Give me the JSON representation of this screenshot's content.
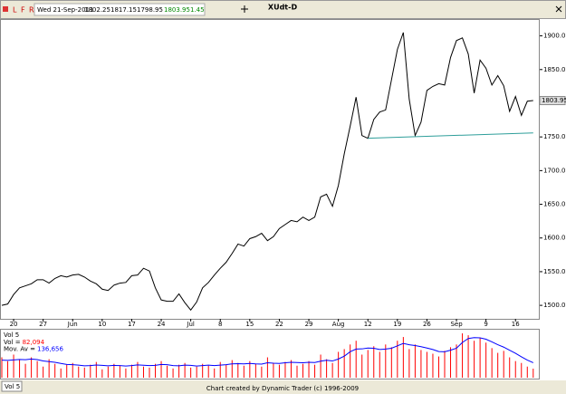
{
  "toolbar": {
    "buttons": [
      "L",
      "F",
      "R"
    ]
  },
  "chart_data": [
    {
      "type": "line",
      "title": "XUdt-D",
      "header": {
        "date": "Wed 21-Sep-2011",
        "open": 1802.25,
        "high": 1817.15,
        "low": 1798.95,
        "close": 1803.95,
        "change": 1.45
      },
      "categories": [
        null,
        null,
        "20",
        null,
        null,
        null,
        null,
        "27",
        null,
        null,
        null,
        null,
        "Jun",
        null,
        null,
        null,
        null,
        "10",
        null,
        null,
        null,
        null,
        "17",
        null,
        null,
        null,
        null,
        "24",
        null,
        null,
        null,
        null,
        "Jul",
        null,
        null,
        null,
        null,
        "8",
        null,
        null,
        null,
        null,
        "15",
        null,
        null,
        null,
        null,
        "22",
        null,
        null,
        null,
        null,
        "29",
        null,
        null,
        null,
        null,
        "Aug",
        null,
        null,
        null,
        null,
        "12",
        null,
        null,
        null,
        null,
        "19",
        null,
        null,
        null,
        null,
        "26",
        null,
        null,
        null,
        null,
        "Sep",
        null,
        null,
        null,
        null,
        "9",
        null,
        null,
        null,
        null,
        "16",
        null,
        null,
        null
      ],
      "series": [
        {
          "color": "#000000",
          "values": [
            1500,
            1502,
            1516,
            1526,
            1529,
            1532,
            1538,
            1538,
            1533,
            1540,
            1544,
            1542,
            1545,
            1546,
            1542,
            1536,
            1532,
            1524,
            1522,
            1530,
            1533,
            1534,
            1544,
            1545,
            1555,
            1551,
            1526,
            1508,
            1506,
            1506,
            1517,
            1504,
            1493,
            1505,
            1526,
            1534,
            1545,
            1555,
            1564,
            1577,
            1591,
            1588,
            1599,
            1602,
            1607,
            1596,
            1602,
            1614,
            1620,
            1626,
            1624,
            1631,
            1626,
            1631,
            1661,
            1665,
            1647,
            1678,
            1725,
            1766,
            1809,
            1752,
            1748,
            1776,
            1787,
            1790,
            1835,
            1880,
            1905,
            1806,
            1752,
            1772,
            1819,
            1825,
            1829,
            1827,
            1868,
            1893,
            1897,
            1873,
            1815,
            1864,
            1852,
            1827,
            1841,
            1826,
            1788,
            1810,
            1782,
            1803,
            1803.95
          ]
        }
      ],
      "trendline": {
        "color": "#2e9e9a",
        "x": [
          62,
          90
        ],
        "values": [
          1748,
          1756
        ]
      },
      "ylim": [
        1480,
        1925
      ],
      "yticks": [
        {
          "value": 1500,
          "label": "1500.00"
        },
        {
          "value": 1550,
          "label": "1550.00"
        },
        {
          "value": 1600,
          "label": "1600.00"
        },
        {
          "value": 1650,
          "label": "1650.00"
        },
        {
          "value": 1700,
          "label": "1700.00"
        },
        {
          "value": 1750,
          "label": "1750.00"
        },
        {
          "value": 1850,
          "label": "1850.00"
        },
        {
          "value": 1900,
          "label": "1900.00"
        }
      ]
    },
    {
      "type": "bar",
      "title": "Vol 5",
      "series": [
        {
          "name": "Vol =",
          "color": "#ff0000",
          "last_label": "82,094",
          "values": [
            185000,
            150000,
            210000,
            168000,
            126000,
            185000,
            151000,
            101000,
            168000,
            126000,
            84000,
            118000,
            134000,
            101000,
            92000,
            118000,
            143000,
            76000,
            101000,
            126000,
            109000,
            84000,
            118000,
            143000,
            101000,
            92000,
            126000,
            151000,
            109000,
            84000,
            118000,
            134000,
            92000,
            101000,
            126000,
            109000,
            84000,
            143000,
            118000,
            160000,
            134000,
            109000,
            151000,
            126000,
            101000,
            185000,
            134000,
            118000,
            143000,
            160000,
            109000,
            126000,
            151000,
            118000,
            210000,
            168000,
            134000,
            235000,
            260000,
            302000,
            336000,
            210000,
            252000,
            286000,
            235000,
            302000,
            277000,
            336000,
            370000,
            260000,
            302000,
            252000,
            235000,
            218000,
            193000,
            244000,
            277000,
            302000,
            403000,
            386000,
            336000,
            360000,
            319000,
            269000,
            226000,
            244000,
            185000,
            151000,
            134000,
            101000,
            82094
          ]
        },
        {
          "name": "Mov. Av =",
          "color": "#0000ff",
          "type": "line",
          "last_label": "136,656",
          "values": [
            160000,
            158000,
            162000,
            166000,
            164000,
            170000,
            165000,
            152000,
            146000,
            140000,
            130000,
            120000,
            118000,
            114000,
            108000,
            110000,
            115000,
            112000,
            108000,
            112000,
            110000,
            106000,
            110000,
            116000,
            113000,
            110000,
            112000,
            120000,
            118000,
            110000,
            108000,
            114000,
            112000,
            106000,
            110000,
            114000,
            110000,
            114000,
            118000,
            126000,
            128000,
            126000,
            130000,
            126000,
            124000,
            136000,
            132000,
            130000,
            136000,
            140000,
            138000,
            136000,
            140000,
            138000,
            150000,
            158000,
            152000,
            170000,
            196000,
            236000,
            260000,
            262000,
            270000,
            268000,
            256000,
            260000,
            268000,
            290000,
            312000,
            300000,
            292000,
            282000,
            270000,
            256000,
            238000,
            236000,
            250000,
            268000,
            320000,
            356000,
            364000,
            362000,
            350000,
            326000,
            300000,
            278000,
            250000,
            222000,
            190000,
            160000,
            136656
          ]
        }
      ],
      "ylim": [
        0,
        420000
      ]
    }
  ],
  "tab": "Vol 5",
  "footer": "Chart created by Dynamic Trader  (c)  1996-2009"
}
